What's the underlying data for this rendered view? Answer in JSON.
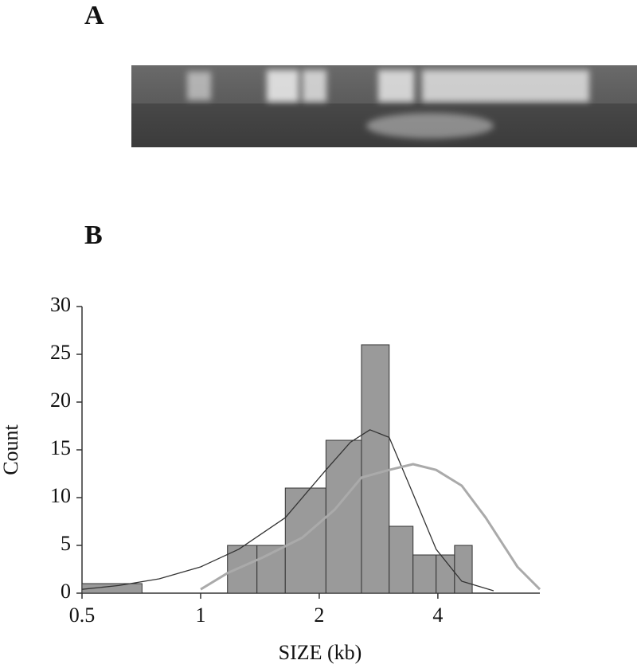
{
  "panels": [
    "A",
    "B"
  ],
  "chart_data": {
    "type": "histogram",
    "xlabel": "SIZE (kb)",
    "ylabel": "Count",
    "xscale": "log",
    "bins": [
      0.5,
      0.71,
      1.17,
      1.39,
      1.64,
      2.08,
      2.56,
      3.01,
      3.46,
      3.96,
      4.41,
      4.89
    ],
    "counts": [
      1,
      0,
      5,
      5,
      11,
      16,
      26,
      7,
      4,
      4,
      5
    ],
    "color": "#9a9a9a",
    "xlim": [
      0.5,
      7.26
    ],
    "xticks": [
      0.5,
      1,
      2,
      4
    ],
    "ylim": [
      0,
      30
    ],
    "yticks": [
      0,
      5,
      10,
      15,
      20,
      25,
      30
    ],
    "curves": [
      {
        "color": "#333333",
        "x": [
          0.5,
          0.62,
          0.785,
          1.0,
          1.25,
          1.64,
          2.08,
          2.4,
          2.69,
          3.01,
          3.46,
          3.96,
          4.6,
          5.54
        ],
        "values": [
          0.4,
          0.8,
          1.5,
          2.75,
          4.6,
          7.9,
          12.9,
          15.8,
          17.1,
          16.3,
          10.4,
          4.6,
          1.25,
          0.25
        ]
      },
      {
        "color": "#aaaaaa",
        "x": [
          1.0,
          1.17,
          1.44,
          1.81,
          2.19,
          2.56,
          3.01,
          3.46,
          3.96,
          4.6,
          5.29,
          6.37,
          7.26
        ],
        "values": [
          0.4,
          2.1,
          3.75,
          5.8,
          8.75,
          12.1,
          12.9,
          13.5,
          12.9,
          11.25,
          7.9,
          2.75,
          0.4
        ]
      }
    ]
  }
}
